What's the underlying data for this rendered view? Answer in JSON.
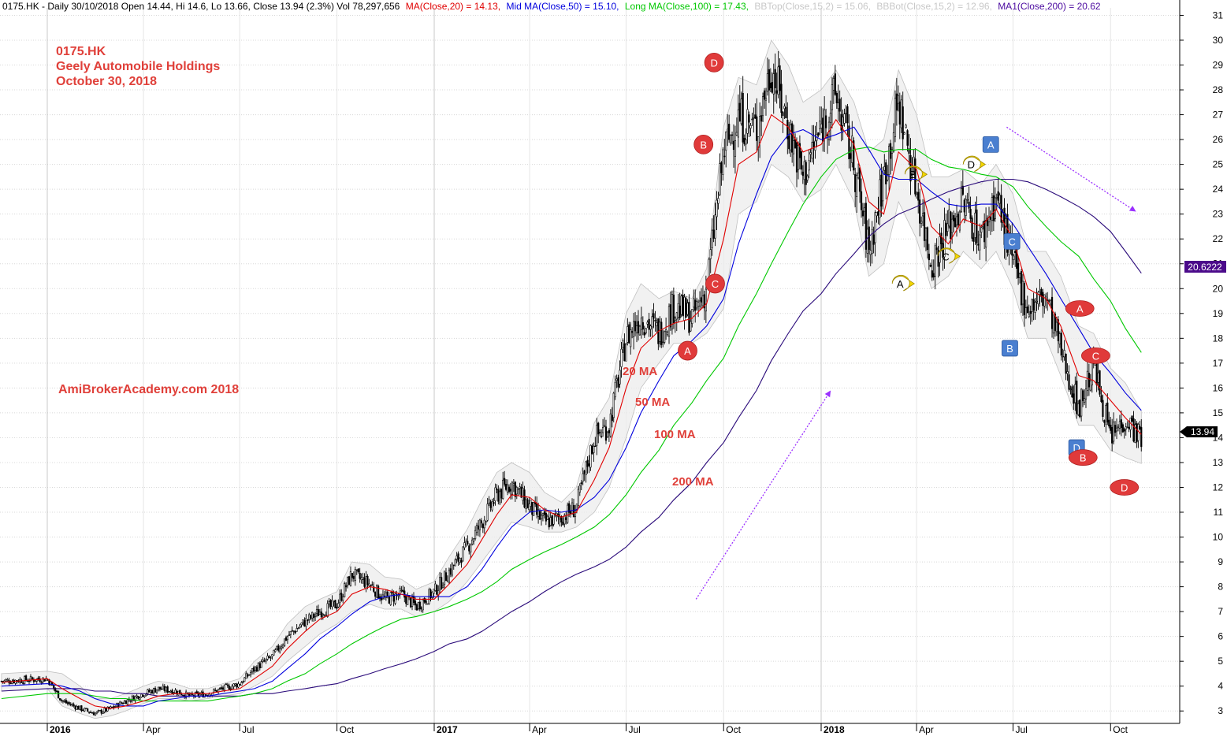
{
  "header": {
    "symbol_line": "0175.HK - Daily 30/10/2018 Open 14.44, Hi 14.6, Lo 13.66, Close 13.94 (2.3%) Vol 78,297,656",
    "ma20": "MA(Close,20) = 14.13,",
    "ma50": "Mid MA(Close,50) = 15.10,",
    "ma100": "Long MA(Close,100) = 17.43,",
    "bbtop": "BBTop(Close,15,2) = 15.06,",
    "bbbot": "BBBot(Close,15,2) = 12.96,",
    "ma200": "MA1(Close,200) = 20.62"
  },
  "annotations": {
    "ticker": "0175.HK",
    "company": "Geely Automobile Holdings",
    "date": "October 30, 2018",
    "watermark": "AmiBrokerAcademy.com  2018",
    "label_20ma": "20 MA",
    "label_50ma": "50 MA",
    "label_100ma": "100 MA",
    "label_200ma": "200 MA"
  },
  "colors": {
    "ma20": "#e00000",
    "ma50": "#0000dd",
    "ma100": "#00c800",
    "ma200": "#2a0a7a",
    "bb": "#c0c0c0",
    "annotation": "#e0403a",
    "arrow": "#9b30ff",
    "marker_red": "#e03a3a",
    "marker_blue": "#4a7fd0",
    "marker_yellow": "#f5d800"
  },
  "chart_data": {
    "type": "line",
    "title": "0175.HK - Daily 30/10/2018",
    "ylim": [
      2.5,
      31.3
    ],
    "y_ticks": [
      3,
      4,
      5,
      6,
      7,
      8,
      9,
      10,
      11,
      12,
      13,
      14,
      15,
      16,
      17,
      18,
      19,
      20,
      21,
      22,
      23,
      24,
      25,
      26,
      27,
      28,
      29,
      30,
      31
    ],
    "x_ticks": [
      "2016",
      "Apr",
      "Jul",
      "Oct",
      "2017",
      "Apr",
      "Jul",
      "Oct",
      "2018",
      "Apr",
      "Jul",
      "Oct"
    ],
    "x_ticks_bold": [
      "2016",
      "2017",
      "2018"
    ],
    "last_close_label": "13.94",
    "ma200_label": "20.6222",
    "x": [
      "2015-12-01",
      "2016-01-01",
      "2016-01-15",
      "2016-02-01",
      "2016-02-15",
      "2016-03-01",
      "2016-03-15",
      "2016-04-01",
      "2016-04-15",
      "2016-05-01",
      "2016-05-15",
      "2016-06-01",
      "2016-06-15",
      "2016-07-01",
      "2016-07-15",
      "2016-08-01",
      "2016-08-15",
      "2016-09-01",
      "2016-09-15",
      "2016-10-01",
      "2016-10-15",
      "2016-11-01",
      "2016-11-15",
      "2016-12-01",
      "2016-12-15",
      "2017-01-01",
      "2017-01-15",
      "2017-02-01",
      "2017-02-15",
      "2017-03-01",
      "2017-03-15",
      "2017-04-01",
      "2017-04-15",
      "2017-05-01",
      "2017-05-15",
      "2017-06-01",
      "2017-06-15",
      "2017-07-01",
      "2017-07-15",
      "2017-08-01",
      "2017-08-15",
      "2017-09-01",
      "2017-09-15",
      "2017-10-01",
      "2017-10-15",
      "2017-11-01",
      "2017-11-15",
      "2017-12-01",
      "2017-12-15",
      "2018-01-01",
      "2018-01-15",
      "2018-02-01",
      "2018-02-15",
      "2018-03-01",
      "2018-03-15",
      "2018-04-01",
      "2018-04-15",
      "2018-05-01",
      "2018-05-15",
      "2018-06-01",
      "2018-06-15",
      "2018-07-01",
      "2018-07-15",
      "2018-08-01",
      "2018-08-15",
      "2018-09-01",
      "2018-09-15",
      "2018-10-01",
      "2018-10-15",
      "2018-10-30"
    ],
    "series": [
      {
        "name": "Close",
        "values": [
          4.2,
          4.3,
          3.4,
          3.1,
          2.9,
          3.1,
          3.4,
          3.7,
          3.9,
          3.8,
          3.6,
          3.7,
          3.9,
          4.1,
          4.7,
          5.2,
          6.0,
          6.6,
          7.0,
          7.3,
          8.5,
          8.1,
          7.5,
          7.7,
          7.2,
          7.8,
          8.6,
          9.6,
          10.6,
          11.7,
          12.2,
          11.2,
          10.6,
          10.8,
          11.2,
          14.0,
          14.5,
          18.0,
          18.9,
          18.2,
          19.3,
          18.8,
          20.0,
          25.5,
          26.9,
          26.4,
          29.0,
          26.5,
          24.5,
          26.5,
          27.8,
          25.0,
          21.5,
          24.5,
          27.5,
          24.0,
          21.0,
          22.5,
          23.5,
          22.0,
          23.8,
          21.0,
          19.2,
          19.7,
          17.5,
          15.2,
          17.0,
          14.0,
          14.8,
          13.94
        ]
      },
      {
        "name": "MA(Close,20)",
        "values": [
          4.15,
          4.3,
          3.9,
          3.5,
          3.2,
          3.1,
          3.2,
          3.4,
          3.6,
          3.7,
          3.7,
          3.7,
          3.8,
          3.9,
          4.3,
          4.8,
          5.5,
          6.2,
          6.7,
          7.0,
          7.7,
          8.0,
          7.9,
          7.7,
          7.5,
          7.5,
          8.1,
          8.9,
          9.9,
          10.9,
          11.7,
          11.6,
          11.1,
          10.8,
          11.0,
          12.3,
          13.6,
          16.0,
          17.6,
          18.3,
          18.6,
          18.8,
          19.4,
          22.0,
          25.0,
          25.5,
          27.0,
          26.5,
          25.5,
          25.8,
          26.8,
          25.8,
          23.5,
          23.0,
          25.5,
          24.8,
          22.5,
          21.8,
          22.8,
          22.5,
          23.2,
          22.0,
          20.0,
          19.6,
          18.5,
          16.5,
          16.3,
          15.5,
          14.8,
          14.13
        ]
      },
      {
        "name": "Mid MA(Close,50)",
        "values": [
          4.0,
          4.1,
          4.0,
          3.8,
          3.5,
          3.3,
          3.2,
          3.2,
          3.4,
          3.5,
          3.6,
          3.6,
          3.7,
          3.8,
          3.9,
          4.2,
          4.7,
          5.3,
          5.9,
          6.4,
          6.9,
          7.4,
          7.6,
          7.7,
          7.6,
          7.6,
          7.6,
          8.0,
          8.7,
          9.6,
          10.4,
          11.0,
          11.1,
          11.0,
          11.1,
          11.6,
          12.3,
          13.6,
          15.0,
          16.3,
          17.3,
          17.9,
          18.5,
          19.6,
          21.8,
          23.8,
          25.3,
          26.2,
          26.4,
          26.0,
          26.2,
          26.5,
          25.6,
          24.6,
          24.4,
          24.4,
          23.9,
          23.4,
          23.3,
          23.4,
          23.4,
          22.6,
          21.7,
          20.6,
          19.6,
          18.4,
          17.4,
          16.6,
          15.8,
          15.1
        ]
      },
      {
        "name": "Long MA(Close,100)",
        "values": [
          3.5,
          3.7,
          3.7,
          3.7,
          3.6,
          3.5,
          3.5,
          3.4,
          3.4,
          3.4,
          3.4,
          3.4,
          3.5,
          3.6,
          3.7,
          3.9,
          4.2,
          4.5,
          4.9,
          5.3,
          5.7,
          6.1,
          6.4,
          6.7,
          6.8,
          7.0,
          7.2,
          7.5,
          7.8,
          8.2,
          8.7,
          9.1,
          9.4,
          9.7,
          10.0,
          10.4,
          10.9,
          11.7,
          12.6,
          13.5,
          14.5,
          15.4,
          16.3,
          17.2,
          18.5,
          19.8,
          21.0,
          22.3,
          23.4,
          24.5,
          25.2,
          25.6,
          25.7,
          25.5,
          25.6,
          25.6,
          25.2,
          24.9,
          24.8,
          24.6,
          24.5,
          24.1,
          23.3,
          22.5,
          21.9,
          21.3,
          20.4,
          19.5,
          18.4,
          17.43
        ]
      },
      {
        "name": "MA1(Close,200)",
        "values": [
          3.8,
          3.9,
          3.9,
          3.9,
          3.8,
          3.8,
          3.7,
          3.7,
          3.6,
          3.6,
          3.6,
          3.6,
          3.6,
          3.6,
          3.7,
          3.7,
          3.8,
          3.9,
          4.0,
          4.1,
          4.3,
          4.5,
          4.7,
          4.9,
          5.1,
          5.4,
          5.7,
          5.9,
          6.2,
          6.6,
          7.0,
          7.4,
          7.8,
          8.2,
          8.5,
          8.8,
          9.1,
          9.6,
          10.2,
          10.8,
          11.5,
          12.2,
          13.0,
          13.8,
          14.8,
          15.9,
          17.1,
          18.2,
          19.1,
          19.8,
          20.6,
          21.4,
          22.1,
          22.6,
          23.0,
          23.3,
          23.6,
          23.9,
          24.1,
          24.3,
          24.4,
          24.4,
          24.3,
          24.0,
          23.7,
          23.3,
          22.9,
          22.3,
          21.5,
          20.62
        ]
      },
      {
        "name": "BBTop(Close,15,2)",
        "values": [
          4.5,
          4.6,
          4.5,
          4.0,
          3.5,
          3.5,
          3.7,
          4.0,
          4.2,
          4.1,
          3.9,
          3.9,
          4.1,
          4.3,
          5.0,
          5.6,
          6.5,
          7.2,
          7.5,
          7.8,
          9.0,
          8.9,
          8.4,
          8.3,
          7.9,
          8.2,
          9.2,
          10.3,
          11.5,
          12.6,
          13.0,
          12.6,
          11.8,
          11.4,
          12.0,
          14.6,
          15.6,
          19.0,
          20.2,
          19.6,
          19.9,
          19.6,
          20.8,
          26.5,
          28.5,
          28.2,
          30.0,
          29.0,
          27.5,
          28.0,
          28.8,
          27.5,
          25.5,
          26.0,
          28.8,
          27.0,
          24.5,
          24.5,
          24.8,
          24.2,
          25.0,
          23.8,
          21.5,
          21.5,
          20.5,
          18.5,
          18.2,
          16.8,
          16.2,
          15.06
        ]
      },
      {
        "name": "BBBot(Close,15,2)",
        "values": [
          3.8,
          3.9,
          3.2,
          2.9,
          2.7,
          2.8,
          3.0,
          3.3,
          3.5,
          3.5,
          3.4,
          3.5,
          3.6,
          3.7,
          4.0,
          4.4,
          5.0,
          5.6,
          6.1,
          6.5,
          7.0,
          7.3,
          7.1,
          7.1,
          6.8,
          7.0,
          7.4,
          8.2,
          9.0,
          9.8,
          10.6,
          10.4,
          10.2,
          10.2,
          10.4,
          11.0,
          12.0,
          14.0,
          16.0,
          17.0,
          17.8,
          17.8,
          18.2,
          19.2,
          23.0,
          23.5,
          25.0,
          24.5,
          23.5,
          24.0,
          25.0,
          23.5,
          20.5,
          21.0,
          23.5,
          22.0,
          20.0,
          20.5,
          21.5,
          20.8,
          21.5,
          20.0,
          18.0,
          18.0,
          16.5,
          14.5,
          14.5,
          13.5,
          13.2,
          12.96
        ]
      }
    ],
    "markers": [
      {
        "label": "D",
        "shape": "circle",
        "color": "red",
        "date": "2017-09-22",
        "y": 29.1
      },
      {
        "label": "B",
        "shape": "circle",
        "color": "red",
        "date": "2017-09-12",
        "y": 25.8
      },
      {
        "label": "C",
        "shape": "circle",
        "color": "red",
        "date": "2017-09-23",
        "y": 20.2
      },
      {
        "label": "A",
        "shape": "circle",
        "color": "red",
        "date": "2017-08-28",
        "y": 17.5
      },
      {
        "label": "A",
        "shape": "square",
        "color": "blue",
        "date": "2018-06-10",
        "y": 25.8
      },
      {
        "label": "C",
        "shape": "square",
        "color": "blue",
        "date": "2018-06-30",
        "y": 21.9
      },
      {
        "label": "B",
        "shape": "square",
        "color": "blue",
        "date": "2018-06-28",
        "y": 17.6
      },
      {
        "label": "D",
        "shape": "square",
        "color": "blue",
        "date": "2018-08-30",
        "y": 13.6
      },
      {
        "label": "B",
        "shape": "pointer",
        "color": "yellow",
        "date": "2018-03-30",
        "y": 24.6
      },
      {
        "label": "D",
        "shape": "pointer",
        "color": "yellow",
        "date": "2018-05-24",
        "y": 25.0
      },
      {
        "label": "C",
        "shape": "pointer",
        "color": "yellow",
        "date": "2018-04-30",
        "y": 21.3
      },
      {
        "label": "A",
        "shape": "pointer",
        "color": "yellow",
        "date": "2018-03-18",
        "y": 20.2
      },
      {
        "label": "A",
        "shape": "ellipse",
        "color": "red",
        "date": "2018-09-02",
        "y": 19.2
      },
      {
        "label": "C",
        "shape": "ellipse",
        "color": "red",
        "date": "2018-09-17",
        "y": 17.3
      },
      {
        "label": "B",
        "shape": "ellipse",
        "color": "red",
        "date": "2018-09-05",
        "y": 13.2
      },
      {
        "label": "D",
        "shape": "ellipse",
        "color": "red",
        "date": "2018-10-14",
        "y": 12.0
      }
    ],
    "arrows": [
      {
        "from": [
          "2017-09-05",
          7.5
        ],
        "to": [
          "2018-01-10",
          15.9
        ]
      },
      {
        "from": [
          "2018-06-25",
          26.5
        ],
        "to": [
          "2018-10-25",
          23.1
        ]
      }
    ]
  }
}
